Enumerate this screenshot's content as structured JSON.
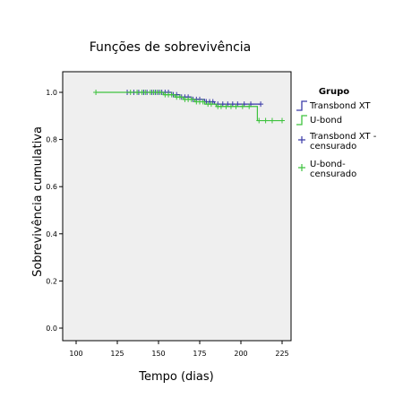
{
  "chart_data": {
    "type": "line",
    "title": "Funções de sobrevivência",
    "xlabel": "Tempo (dias)",
    "ylabel": "Sobrevivência cumulativa",
    "xlim": [
      100,
      225
    ],
    "ylim": [
      0.0,
      1.0
    ],
    "xticks": [
      100,
      125,
      150,
      175,
      200,
      225
    ],
    "xtick_labels": [
      "100",
      "125",
      "150",
      "175",
      "200",
      "225"
    ],
    "yticks": [
      0.0,
      0.2,
      0.4,
      0.6,
      0.8,
      1.0
    ],
    "ytick_labels": [
      "0.0",
      "0.2",
      "0.4",
      "0.6",
      "0.8",
      "1.0"
    ],
    "grid": false,
    "legend": {
      "title": "Grupo",
      "placement": "right",
      "entries": [
        {
          "label": "Transbond XT",
          "kind": "step",
          "color": "#3a3aa8"
        },
        {
          "label": "U-bond",
          "kind": "step",
          "color": "#3ec23e"
        },
        {
          "label_lines": [
            "Transbond XT -",
            "censurado"
          ],
          "kind": "censor",
          "color": "#3a3aa8"
        },
        {
          "label_lines": [
            "U-bond-",
            "censurado"
          ],
          "kind": "censor",
          "color": "#3ec23e"
        }
      ]
    },
    "series": [
      {
        "name": "Transbond XT",
        "color": "#3a3aa8",
        "steps": [
          [
            131,
            1.0
          ],
          [
            158,
            0.99
          ],
          [
            163,
            0.98
          ],
          [
            170,
            0.97
          ],
          [
            178,
            0.96
          ],
          [
            184,
            0.95
          ],
          [
            212,
            0.95
          ]
        ],
        "censored": [
          [
            131,
            1.0
          ],
          [
            135,
            1.0
          ],
          [
            138,
            1.0
          ],
          [
            141,
            1.0
          ],
          [
            143,
            1.0
          ],
          [
            146,
            1.0
          ],
          [
            148,
            1.0
          ],
          [
            150,
            1.0
          ],
          [
            152,
            1.0
          ],
          [
            154,
            1.0
          ],
          [
            156,
            1.0
          ],
          [
            159,
            0.99
          ],
          [
            161,
            0.99
          ],
          [
            164,
            0.98
          ],
          [
            166,
            0.98
          ],
          [
            168,
            0.98
          ],
          [
            171,
            0.97
          ],
          [
            173,
            0.97
          ],
          [
            175,
            0.97
          ],
          [
            179,
            0.96
          ],
          [
            181,
            0.96
          ],
          [
            183,
            0.96
          ],
          [
            186,
            0.95
          ],
          [
            189,
            0.95
          ],
          [
            192,
            0.95
          ],
          [
            195,
            0.95
          ],
          [
            198,
            0.95
          ],
          [
            202,
            0.95
          ],
          [
            206,
            0.95
          ],
          [
            212,
            0.95
          ]
        ]
      },
      {
        "name": "U-bond",
        "color": "#3ec23e",
        "steps": [
          [
            112,
            1.0
          ],
          [
            153,
            0.99
          ],
          [
            160,
            0.98
          ],
          [
            165,
            0.97
          ],
          [
            172,
            0.96
          ],
          [
            178,
            0.95
          ],
          [
            185,
            0.94
          ],
          [
            210,
            0.94
          ],
          [
            210,
            0.88
          ],
          [
            225,
            0.88
          ]
        ],
        "censored": [
          [
            112,
            1.0
          ],
          [
            133,
            1.0
          ],
          [
            137,
            1.0
          ],
          [
            140,
            1.0
          ],
          [
            142,
            1.0
          ],
          [
            145,
            1.0
          ],
          [
            147,
            1.0
          ],
          [
            149,
            1.0
          ],
          [
            151,
            1.0
          ],
          [
            154,
            0.99
          ],
          [
            156,
            0.99
          ],
          [
            158,
            0.99
          ],
          [
            161,
            0.98
          ],
          [
            163,
            0.98
          ],
          [
            166,
            0.97
          ],
          [
            168,
            0.97
          ],
          [
            170,
            0.97
          ],
          [
            173,
            0.96
          ],
          [
            175,
            0.96
          ],
          [
            177,
            0.96
          ],
          [
            180,
            0.95
          ],
          [
            182,
            0.95
          ],
          [
            186,
            0.94
          ],
          [
            188,
            0.94
          ],
          [
            191,
            0.94
          ],
          [
            194,
            0.94
          ],
          [
            197,
            0.94
          ],
          [
            201,
            0.94
          ],
          [
            205,
            0.94
          ],
          [
            211,
            0.88
          ],
          [
            215,
            0.88
          ],
          [
            219,
            0.88
          ],
          [
            225,
            0.88
          ]
        ]
      }
    ]
  }
}
